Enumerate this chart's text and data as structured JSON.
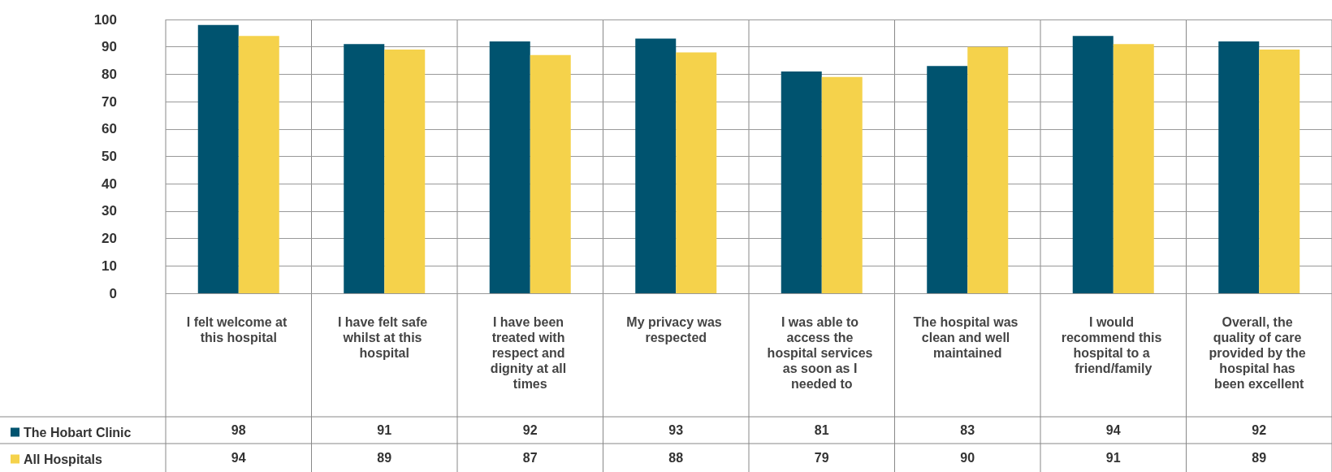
{
  "chart_data": {
    "type": "bar",
    "categories": [
      "I felt welcome at this hospital",
      "I have felt safe whilst at this hospital",
      "I have been treated with respect and dignity at all times",
      "My privacy was respected",
      "I was able to access the hospital services as soon as I needed to",
      "The hospital was clean and well maintained",
      "I would recommend this hospital to a friend/family",
      "Overall, the quality of care provided by the hospital has been excellent"
    ],
    "series": [
      {
        "name": "The Hobart Clinic",
        "color": "#00536f",
        "values": [
          98,
          91,
          92,
          93,
          81,
          83,
          94,
          92
        ]
      },
      {
        "name": "All Hospitals",
        "color": "#f5d24b",
        "values": [
          94,
          89,
          87,
          88,
          79,
          90,
          91,
          89
        ]
      }
    ],
    "ylim": [
      0,
      100
    ],
    "yticks": [
      0,
      10,
      20,
      30,
      40,
      50,
      60,
      70,
      80,
      90,
      100
    ],
    "grid": "y",
    "legend": "bottom left",
    "data_labels": true
  }
}
